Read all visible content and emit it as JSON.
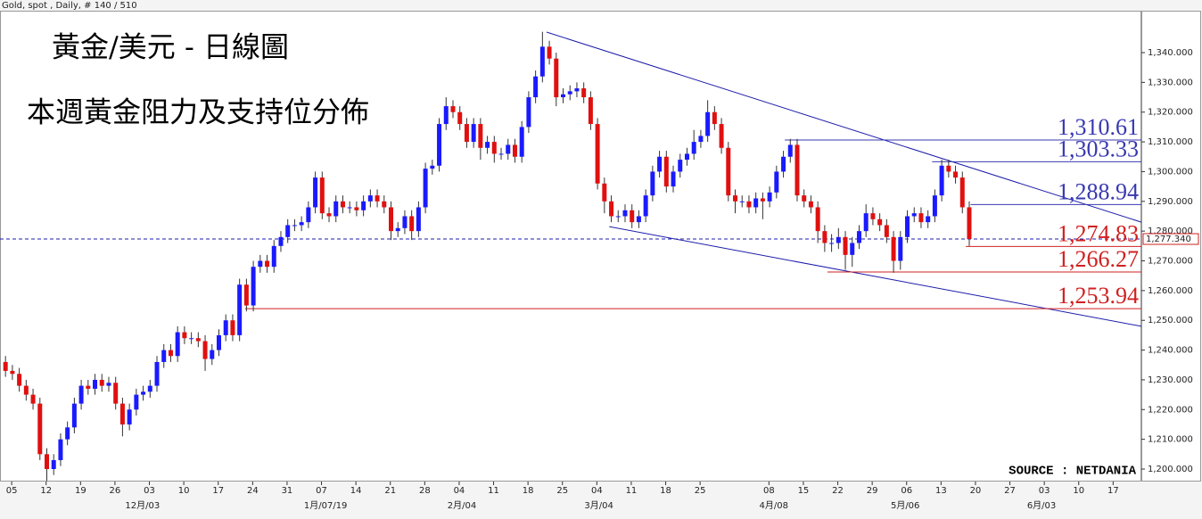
{
  "header": "Gold, spot , Daily, # 140 / 510",
  "chart_data": {
    "type": "candlestick",
    "title": "黃金/美元 - 日線圖",
    "subtitle": "本週黃金阻力及支持位分佈",
    "source": "SOURCE : NETDANIA",
    "up_color": "#1a1aff",
    "down_color": "#e01010",
    "open": [
      1236,
      1233,
      1232,
      1228,
      1225,
      1222,
      1205,
      1200,
      1203,
      1210,
      1214,
      1222,
      1228,
      1227,
      1230,
      1228,
      1229,
      1222,
      1215,
      1220,
      1225,
      1226,
      1228,
      1236,
      1240,
      1238,
      1246,
      1244,
      1244,
      1243,
      1237,
      1240,
      1245,
      1250,
      1245,
      1262,
      1255,
      1268,
      1270,
      1268,
      1275,
      1278,
      1282,
      1282,
      1283,
      1288,
      1298,
      1286,
      1285,
      1290,
      1288,
      1288,
      1287,
      1290,
      1292,
      1290,
      1288,
      1280,
      1281,
      1285,
      1280,
      1288,
      1301,
      1302,
      1316,
      1322,
      1320,
      1316,
      1310,
      1316,
      1308,
      1310,
      1306,
      1306,
      1309,
      1305,
      1315,
      1325,
      1332,
      1342,
      1338,
      1325,
      1326,
      1327,
      1328,
      1325,
      1316,
      1296,
      1290,
      1285,
      1285,
      1287,
      1283,
      1285,
      1292,
      1300,
      1305,
      1295,
      1300,
      1304,
      1306,
      1310,
      1312,
      1320,
      1316,
      1308,
      1292,
      1290,
      1290,
      1288,
      1291,
      1290,
      1293,
      1300,
      1305,
      1309,
      1292,
      1290,
      1288,
      1280,
      1276,
      1276,
      1278,
      1272,
      1276,
      1280,
      1286,
      1284,
      1282,
      1278,
      1270,
      1278,
      1285,
      1286,
      1283,
      1285,
      1292,
      1302,
      1300,
      1298,
      1288
    ],
    "high": [
      1238,
      1235,
      1234,
      1230,
      1227,
      1224,
      1207,
      1205,
      1212,
      1216,
      1224,
      1230,
      1230,
      1232,
      1232,
      1231,
      1231,
      1224,
      1222,
      1227,
      1228,
      1230,
      1238,
      1242,
      1242,
      1248,
      1248,
      1246,
      1246,
      1245,
      1242,
      1247,
      1252,
      1252,
      1264,
      1264,
      1270,
      1272,
      1272,
      1277,
      1280,
      1284,
      1284,
      1285,
      1290,
      1300,
      1300,
      1288,
      1292,
      1292,
      1290,
      1290,
      1292,
      1294,
      1294,
      1292,
      1290,
      1283,
      1287,
      1287,
      1290,
      1303,
      1304,
      1318,
      1325,
      1324,
      1322,
      1318,
      1318,
      1318,
      1312,
      1312,
      1308,
      1311,
      1311,
      1317,
      1327,
      1334,
      1347,
      1344,
      1340,
      1328,
      1329,
      1330,
      1330,
      1327,
      1318,
      1298,
      1292,
      1287,
      1289,
      1289,
      1287,
      1294,
      1302,
      1307,
      1307,
      1302,
      1306,
      1308,
      1314,
      1314,
      1324,
      1322,
      1318,
      1310,
      1294,
      1292,
      1292,
      1293,
      1293,
      1295,
      1302,
      1307,
      1311,
      1311,
      1294,
      1292,
      1290,
      1282,
      1279,
      1281,
      1280,
      1278,
      1282,
      1289,
      1288,
      1286,
      1284,
      1280,
      1280,
      1287,
      1288,
      1288,
      1287,
      1294,
      1304,
      1304,
      1302,
      1300,
      1290
    ],
    "low": [
      1231,
      1230,
      1226,
      1223,
      1220,
      1203,
      1196,
      1198,
      1201,
      1208,
      1212,
      1220,
      1225,
      1225,
      1226,
      1226,
      1220,
      1211,
      1213,
      1218,
      1223,
      1224,
      1226,
      1234,
      1236,
      1236,
      1242,
      1242,
      1241,
      1233,
      1235,
      1238,
      1243,
      1243,
      1243,
      1253,
      1253,
      1266,
      1266,
      1266,
      1273,
      1276,
      1280,
      1280,
      1281,
      1286,
      1284,
      1283,
      1283,
      1286,
      1286,
      1285,
      1285,
      1288,
      1288,
      1286,
      1277,
      1278,
      1279,
      1277,
      1278,
      1286,
      1299,
      1300,
      1314,
      1318,
      1314,
      1308,
      1308,
      1304,
      1306,
      1303,
      1304,
      1304,
      1303,
      1303,
      1313,
      1323,
      1330,
      1336,
      1322,
      1323,
      1324,
      1325,
      1323,
      1314,
      1294,
      1286,
      1283,
      1283,
      1283,
      1281,
      1281,
      1283,
      1290,
      1298,
      1293,
      1293,
      1298,
      1302,
      1304,
      1308,
      1310,
      1314,
      1306,
      1290,
      1286,
      1288,
      1286,
      1286,
      1284,
      1288,
      1291,
      1298,
      1303,
      1290,
      1288,
      1286,
      1276,
      1273,
      1273,
      1274,
      1267,
      1268,
      1274,
      1278,
      1282,
      1280,
      1276,
      1266,
      1267,
      1276,
      1283,
      1281,
      1281,
      1283,
      1290,
      1298,
      1296,
      1286,
      1275
    ],
    "close": [
      1233,
      1232,
      1228,
      1225,
      1222,
      1205,
      1200,
      1203,
      1210,
      1214,
      1222,
      1228,
      1227,
      1230,
      1228,
      1229,
      1222,
      1215,
      1220,
      1225,
      1226,
      1228,
      1236,
      1240,
      1238,
      1246,
      1244,
      1244,
      1243,
      1237,
      1240,
      1245,
      1250,
      1245,
      1262,
      1255,
      1268,
      1270,
      1268,
      1275,
      1278,
      1282,
      1282,
      1283,
      1288,
      1298,
      1286,
      1285,
      1290,
      1288,
      1288,
      1287,
      1290,
      1292,
      1290,
      1288,
      1280,
      1281,
      1285,
      1280,
      1288,
      1301,
      1302,
      1316,
      1322,
      1320,
      1316,
      1310,
      1316,
      1308,
      1310,
      1306,
      1306,
      1309,
      1305,
      1315,
      1325,
      1332,
      1342,
      1338,
      1325,
      1326,
      1327,
      1328,
      1325,
      1316,
      1296,
      1290,
      1285,
      1285,
      1287,
      1283,
      1285,
      1292,
      1300,
      1305,
      1295,
      1300,
      1304,
      1306,
      1310,
      1312,
      1320,
      1316,
      1308,
      1292,
      1290,
      1290,
      1288,
      1291,
      1290,
      1293,
      1300,
      1305,
      1309,
      1292,
      1290,
      1288,
      1280,
      1276,
      1276,
      1278,
      1272,
      1276,
      1280,
      1286,
      1284,
      1282,
      1278,
      1270,
      1278,
      1285,
      1286,
      1283,
      1285,
      1292,
      1302,
      1300,
      1298,
      1288,
      1277.34
    ],
    "xlim": [
      -0.8,
      165
    ],
    "xticks": [
      {
        "value": 0.9,
        "label": "05"
      },
      {
        "value": 5.9,
        "label": "12"
      },
      {
        "value": 10.9,
        "label": "19"
      },
      {
        "value": 15.9,
        "label": "26"
      },
      {
        "value": 20.9,
        "label": "03"
      },
      {
        "value": 25.9,
        "label": "10"
      },
      {
        "value": 30.9,
        "label": "17"
      },
      {
        "value": 35.9,
        "label": "24"
      },
      {
        "value": 40.9,
        "label": "31"
      },
      {
        "value": 45.9,
        "label": "07"
      },
      {
        "value": 50.9,
        "label": "14"
      },
      {
        "value": 55.9,
        "label": "21"
      },
      {
        "value": 60.9,
        "label": "28"
      },
      {
        "value": 65.9,
        "label": "04"
      },
      {
        "value": 70.9,
        "label": "11"
      },
      {
        "value": 75.9,
        "label": "18"
      },
      {
        "value": 80.9,
        "label": "25"
      },
      {
        "value": 85.9,
        "label": "04"
      },
      {
        "value": 90.9,
        "label": "11"
      },
      {
        "value": 95.9,
        "label": "18"
      },
      {
        "value": 100.9,
        "label": "25"
      },
      {
        "value": 110.9,
        "label": "08"
      },
      {
        "value": 115.9,
        "label": "15"
      },
      {
        "value": 120.9,
        "label": "22"
      },
      {
        "value": 125.9,
        "label": "29"
      },
      {
        "value": 130.9,
        "label": "06"
      },
      {
        "value": 135.9,
        "label": "13"
      },
      {
        "value": 140.9,
        "label": "20"
      },
      {
        "value": 145.9,
        "label": "27"
      },
      {
        "value": 150.9,
        "label": "03"
      },
      {
        "value": 155.9,
        "label": "10"
      },
      {
        "value": 160.9,
        "label": "17"
      }
    ],
    "month_labels": [
      {
        "value": 19.9,
        "label": "12月/03"
      },
      {
        "value": 46.5,
        "label": "1月/07/19"
      },
      {
        "value": 66.3,
        "label": "2月/04"
      },
      {
        "value": 86.2,
        "label": "3月/04"
      },
      {
        "value": 111.6,
        "label": "4月/08"
      },
      {
        "value": 130.7,
        "label": "5月/06"
      },
      {
        "value": 150.5,
        "label": "6月/03"
      }
    ],
    "ylim": [
      1195.8,
      1354.1
    ],
    "yticks": [
      {
        "value": 1200,
        "label": "1,200.000"
      },
      {
        "value": 1210,
        "label": "1,210.000"
      },
      {
        "value": 1220,
        "label": "1,220.000"
      },
      {
        "value": 1230,
        "label": "1,230.000"
      },
      {
        "value": 1240,
        "label": "1,240.000"
      },
      {
        "value": 1250,
        "label": "1,250.000"
      },
      {
        "value": 1260,
        "label": "1,260.000"
      },
      {
        "value": 1270,
        "label": "1,270.000"
      },
      {
        "value": 1280,
        "label": "1,280.000"
      },
      {
        "value": 1290,
        "label": "1,290.000"
      },
      {
        "value": 1300,
        "label": "1,300.000"
      },
      {
        "value": 1310,
        "label": "1,310.000"
      },
      {
        "value": 1320,
        "label": "1,320.000"
      },
      {
        "value": 1330,
        "label": "1,330.000"
      },
      {
        "value": 1340,
        "label": "1,340.000"
      }
    ],
    "last_price": {
      "value": 1277.34,
      "label": "1,277.340",
      "color": "#d02020"
    },
    "levels": [
      {
        "value": 1310.61,
        "label": "1,310.61",
        "x_start": 113.2,
        "color": "#3838b0"
      },
      {
        "value": 1303.33,
        "label": "1,303.33",
        "x_start": 134.6,
        "color": "#3838b0"
      },
      {
        "value": 1288.94,
        "label": "1,288.94",
        "x_start": 140.2,
        "color": "#3838b0"
      },
      {
        "value": 1274.83,
        "label": "1,274.83",
        "x_start": 139.5,
        "color": "#d02020"
      },
      {
        "value": 1266.27,
        "label": "1,266.27",
        "x_start": 119.4,
        "color": "#d02020"
      },
      {
        "value": 1253.94,
        "label": "1,253.94",
        "x_start": 34.8,
        "color": "#d02020"
      }
    ],
    "trendlines": [
      {
        "x": [
          78.6,
          165
        ],
        "y": [
          1346.9,
          1283.0
        ],
        "color": "#1c1caa"
      },
      {
        "x": [
          87.7,
          165
        ],
        "y": [
          1281.5,
          1248.0
        ],
        "color": "#1c1caa"
      }
    ]
  }
}
